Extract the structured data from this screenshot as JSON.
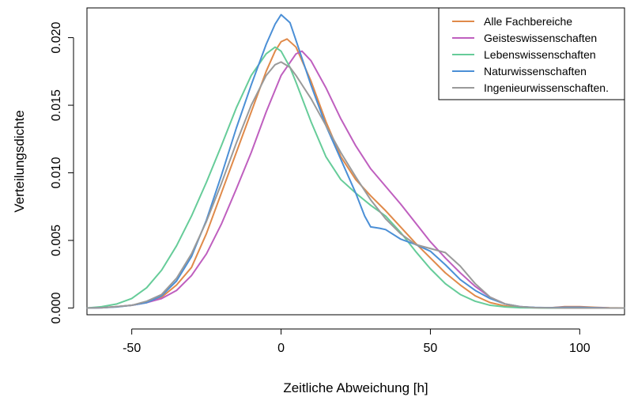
{
  "chart_data": {
    "type": "line",
    "xlabel": "Zeitliche Abweichung [h]",
    "ylabel": "Verteilungsdichte",
    "xlim": [
      -65,
      115
    ],
    "ylim": [
      -0.0005,
      0.0222
    ],
    "xticks": [
      -50,
      0,
      50,
      100
    ],
    "xtick_labels": [
      "-50",
      "0",
      "50",
      "100"
    ],
    "yticks": [
      0.0,
      0.005,
      0.01,
      0.015,
      0.02
    ],
    "ytick_labels": [
      "0.000",
      "0.005",
      "0.010",
      "0.015",
      "0.020"
    ],
    "grid": false,
    "legend_position": "top-right",
    "series": [
      {
        "name": "Alle Fachbereiche",
        "color": "#E08A4A",
        "points": [
          [
            -65,
            0
          ],
          [
            -60,
            3e-05
          ],
          [
            -55,
            0.0001
          ],
          [
            -50,
            0.0002
          ],
          [
            -45,
            0.0004
          ],
          [
            -40,
            0.0008
          ],
          [
            -35,
            0.0017
          ],
          [
            -30,
            0.003
          ],
          [
            -25,
            0.0055
          ],
          [
            -20,
            0.0085
          ],
          [
            -15,
            0.0115
          ],
          [
            -10,
            0.0145
          ],
          [
            -5,
            0.0175
          ],
          [
            -2,
            0.019
          ],
          [
            0,
            0.0197
          ],
          [
            2,
            0.0199
          ],
          [
            5,
            0.0193
          ],
          [
            10,
            0.0168
          ],
          [
            15,
            0.0138
          ],
          [
            20,
            0.0112
          ],
          [
            25,
            0.0095
          ],
          [
            30,
            0.0083
          ],
          [
            35,
            0.0072
          ],
          [
            40,
            0.006
          ],
          [
            45,
            0.0048
          ],
          [
            50,
            0.0037
          ],
          [
            55,
            0.0026
          ],
          [
            60,
            0.0017
          ],
          [
            65,
            0.0009
          ],
          [
            70,
            0.0004
          ],
          [
            75,
            0.00015
          ],
          [
            80,
            5e-05
          ],
          [
            85,
            2e-05
          ],
          [
            90,
            1e-05
          ],
          [
            95,
            0.0001
          ],
          [
            100,
            0.0001
          ],
          [
            105,
            5e-05
          ],
          [
            110,
            1e-05
          ],
          [
            115,
            0
          ]
        ]
      },
      {
        "name": "Geisteswissenschaften",
        "color": "#BF5FBF",
        "points": [
          [
            -65,
            0
          ],
          [
            -60,
            2e-05
          ],
          [
            -55,
            0.0001
          ],
          [
            -50,
            0.0002
          ],
          [
            -45,
            0.0004
          ],
          [
            -40,
            0.0007
          ],
          [
            -35,
            0.0013
          ],
          [
            -30,
            0.0024
          ],
          [
            -25,
            0.004
          ],
          [
            -20,
            0.0062
          ],
          [
            -15,
            0.0088
          ],
          [
            -10,
            0.0115
          ],
          [
            -5,
            0.0145
          ],
          [
            0,
            0.0172
          ],
          [
            5,
            0.0188
          ],
          [
            7,
            0.019
          ],
          [
            10,
            0.0183
          ],
          [
            15,
            0.0163
          ],
          [
            20,
            0.014
          ],
          [
            25,
            0.012
          ],
          [
            30,
            0.0103
          ],
          [
            35,
            0.009
          ],
          [
            40,
            0.0077
          ],
          [
            45,
            0.0063
          ],
          [
            50,
            0.0049
          ],
          [
            55,
            0.0037
          ],
          [
            60,
            0.0026
          ],
          [
            65,
            0.0016
          ],
          [
            70,
            0.0008
          ],
          [
            75,
            0.0003
          ],
          [
            80,
            0.0001
          ],
          [
            85,
            3e-05
          ],
          [
            90,
            2e-05
          ],
          [
            95,
            5e-05
          ],
          [
            100,
            5e-05
          ],
          [
            105,
            2e-05
          ],
          [
            110,
            0
          ],
          [
            115,
            0
          ]
        ]
      },
      {
        "name": "Lebenswissenschaften",
        "color": "#66CC99",
        "points": [
          [
            -65,
            0
          ],
          [
            -60,
            0.0001
          ],
          [
            -55,
            0.0003
          ],
          [
            -50,
            0.0007
          ],
          [
            -45,
            0.0015
          ],
          [
            -40,
            0.0028
          ],
          [
            -35,
            0.0046
          ],
          [
            -30,
            0.0068
          ],
          [
            -25,
            0.0093
          ],
          [
            -20,
            0.012
          ],
          [
            -15,
            0.0148
          ],
          [
            -10,
            0.0172
          ],
          [
            -5,
            0.0188
          ],
          [
            -2,
            0.0193
          ],
          [
            0,
            0.019
          ],
          [
            3,
            0.0178
          ],
          [
            5,
            0.0167
          ],
          [
            10,
            0.0138
          ],
          [
            15,
            0.0112
          ],
          [
            20,
            0.0095
          ],
          [
            25,
            0.0085
          ],
          [
            30,
            0.0076
          ],
          [
            35,
            0.0068
          ],
          [
            40,
            0.0056
          ],
          [
            45,
            0.0042
          ],
          [
            50,
            0.0029
          ],
          [
            55,
            0.0018
          ],
          [
            60,
            0.001
          ],
          [
            65,
            0.0005
          ],
          [
            70,
            0.0002
          ],
          [
            75,
            8e-05
          ],
          [
            80,
            2e-05
          ],
          [
            85,
            1e-05
          ],
          [
            90,
            0
          ],
          [
            95,
            0
          ],
          [
            100,
            0
          ],
          [
            105,
            0
          ],
          [
            110,
            0
          ],
          [
            115,
            0
          ]
        ]
      },
      {
        "name": "Naturwissenschaften",
        "color": "#4B8FD6",
        "points": [
          [
            -65,
            0
          ],
          [
            -60,
            2e-05
          ],
          [
            -55,
            8e-05
          ],
          [
            -50,
            0.0002
          ],
          [
            -45,
            0.0004
          ],
          [
            -40,
            0.0009
          ],
          [
            -35,
            0.002
          ],
          [
            -30,
            0.0038
          ],
          [
            -25,
            0.0065
          ],
          [
            -20,
            0.0098
          ],
          [
            -15,
            0.0133
          ],
          [
            -10,
            0.0165
          ],
          [
            -5,
            0.0195
          ],
          [
            -2,
            0.021
          ],
          [
            0,
            0.0217
          ],
          [
            3,
            0.0211
          ],
          [
            5,
            0.0198
          ],
          [
            10,
            0.0165
          ],
          [
            15,
            0.0135
          ],
          [
            20,
            0.011
          ],
          [
            25,
            0.0085
          ],
          [
            28,
            0.0068
          ],
          [
            30,
            0.006
          ],
          [
            33,
            0.0059
          ],
          [
            35,
            0.0058
          ],
          [
            40,
            0.0051
          ],
          [
            45,
            0.0047
          ],
          [
            50,
            0.0042
          ],
          [
            55,
            0.0032
          ],
          [
            60,
            0.0021
          ],
          [
            65,
            0.0013
          ],
          [
            70,
            0.0007
          ],
          [
            75,
            0.0003
          ],
          [
            80,
            0.0001
          ],
          [
            85,
            4e-05
          ],
          [
            90,
            2e-05
          ],
          [
            95,
            5e-05
          ],
          [
            100,
            5e-05
          ],
          [
            105,
            2e-05
          ],
          [
            110,
            0
          ],
          [
            115,
            0
          ]
        ]
      },
      {
        "name": "Ingenieurwissenschaften.",
        "color": "#9A9A9A",
        "points": [
          [
            -65,
            0
          ],
          [
            -60,
            2e-05
          ],
          [
            -55,
            0.0001
          ],
          [
            -50,
            0.0002
          ],
          [
            -45,
            0.0005
          ],
          [
            -40,
            0.001
          ],
          [
            -35,
            0.0022
          ],
          [
            -30,
            0.004
          ],
          [
            -25,
            0.0064
          ],
          [
            -20,
            0.0092
          ],
          [
            -15,
            0.0122
          ],
          [
            -10,
            0.015
          ],
          [
            -5,
            0.0172
          ],
          [
            -2,
            0.018
          ],
          [
            0,
            0.0182
          ],
          [
            3,
            0.0178
          ],
          [
            5,
            0.0172
          ],
          [
            10,
            0.0155
          ],
          [
            15,
            0.0135
          ],
          [
            20,
            0.0115
          ],
          [
            25,
            0.0097
          ],
          [
            30,
            0.008
          ],
          [
            35,
            0.0066
          ],
          [
            40,
            0.0055
          ],
          [
            45,
            0.0047
          ],
          [
            50,
            0.0044
          ],
          [
            55,
            0.0041
          ],
          [
            60,
            0.0031
          ],
          [
            65,
            0.0018
          ],
          [
            70,
            0.0008
          ],
          [
            75,
            0.0003
          ],
          [
            80,
            0.0001
          ],
          [
            85,
            3e-05
          ],
          [
            90,
            1e-05
          ],
          [
            95,
            0
          ],
          [
            100,
            0
          ],
          [
            105,
            0
          ],
          [
            110,
            0
          ],
          [
            115,
            0
          ]
        ]
      }
    ]
  }
}
